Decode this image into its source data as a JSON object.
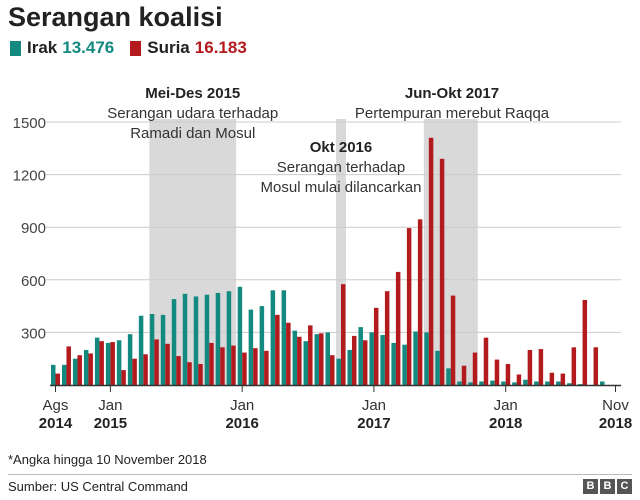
{
  "header": {
    "title": "Serangan koalisi"
  },
  "footer": {
    "note": "*Angka hingga 10 November 2018",
    "source": "Sumber: US Central Command",
    "logo_letters": [
      "B",
      "B",
      "C"
    ]
  },
  "colors": {
    "irak": "#13897f",
    "suria": "#b31a1e",
    "shade": "#d9d9d9",
    "grid": "#cccccc",
    "axis": "#333333"
  },
  "chart_data": {
    "type": "bar",
    "title": "Serangan koalisi",
    "xlabel": "",
    "ylabel": "",
    "ylim": [
      0,
      1500
    ],
    "yticks": [
      300,
      600,
      900,
      1200,
      1500
    ],
    "grid": true,
    "legend": "top-left",
    "series": [
      {
        "name": "Irak",
        "total": "13.476",
        "color": "#13897f",
        "values": [
          115,
          115,
          150,
          200,
          270,
          240,
          255,
          290,
          395,
          405,
          400,
          490,
          520,
          505,
          515,
          525,
          535,
          560,
          430,
          450,
          540,
          540,
          310,
          250,
          290,
          300,
          150,
          200,
          330,
          300,
          285,
          240,
          230,
          305,
          300,
          195,
          95,
          20,
          15,
          20,
          25,
          20,
          15,
          30,
          20,
          20,
          20,
          10,
          5,
          0,
          20,
          0
        ]
      },
      {
        "name": "Suria",
        "total": "16.183",
        "color": "#b31a1e",
        "values": [
          65,
          220,
          170,
          180,
          250,
          245,
          85,
          150,
          175,
          260,
          235,
          165,
          130,
          120,
          240,
          215,
          225,
          185,
          210,
          195,
          400,
          355,
          275,
          340,
          295,
          170,
          575,
          280,
          255,
          440,
          535,
          645,
          895,
          945,
          1410,
          1290,
          510,
          110,
          185,
          270,
          145,
          120,
          60,
          200,
          205,
          70,
          65,
          215,
          485,
          215,
          0,
          0
        ]
      }
    ],
    "x_ticks": [
      {
        "label": "Ags",
        "year": "2014",
        "month": "2014-08"
      },
      {
        "label": "Jan",
        "year": "2015",
        "month": "2015-01"
      },
      {
        "label": "Jan",
        "year": "2016",
        "month": "2016-01"
      },
      {
        "label": "Jan",
        "year": "2017",
        "month": "2017-01"
      },
      {
        "label": "Jan",
        "year": "2018",
        "month": "2018-01"
      },
      {
        "label": "Nov",
        "year": "2018",
        "month": "2018-11"
      }
    ],
    "annotations": [
      {
        "heading": "Mei-Des 2015",
        "lines": [
          "Serangan udara terhadap",
          "Ramadi dan Mosul"
        ],
        "from": "2015-05",
        "to": "2015-12"
      },
      {
        "heading": "Okt 2016",
        "lines": [
          "Serangan terhadap",
          "Mosul mulai dilancarkan"
        ],
        "from": "2016-10",
        "to": "2016-10"
      },
      {
        "heading": "Jun-Okt 2017",
        "lines": [
          "Pertempuran merebut Raqqa"
        ],
        "from": "2017-06",
        "to": "2017-10"
      }
    ]
  }
}
